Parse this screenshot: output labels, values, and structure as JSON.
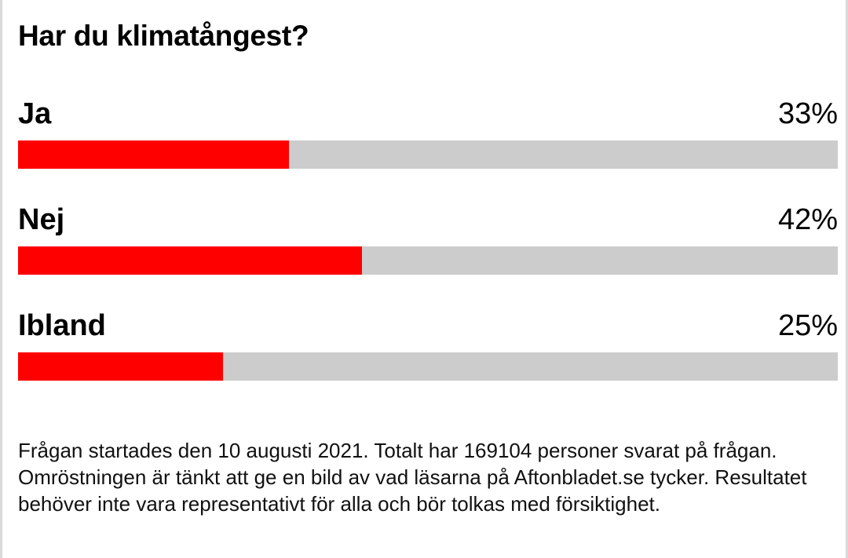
{
  "poll": {
    "question": "Har du klimatångest?",
    "bar_color": "#ff0000",
    "track_color": "#cccccc",
    "options": [
      {
        "label": "Ja",
        "percent_text": "33%",
        "percent": 33
      },
      {
        "label": "Nej",
        "percent_text": "42%",
        "percent": 42
      },
      {
        "label": "Ibland",
        "percent_text": "25%",
        "percent": 25
      }
    ],
    "footnote": "Frågan startades den 10 augusti 2021. Totalt har 169104 personer svarat på frågan. Omröstningen är tänkt att ge en bild av vad läsarna på Aftonbladet.se tycker. Resultatet behöver inte vara representativt för alla och bör tolkas med försiktighet."
  }
}
